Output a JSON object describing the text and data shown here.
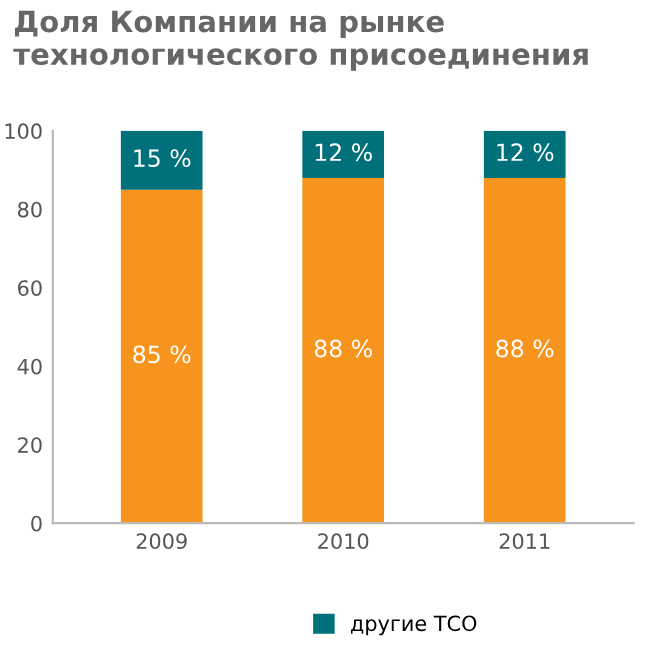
{
  "chart_data": {
    "type": "bar",
    "title": "Доля Компании на рынке\nтехнологического присоединения",
    "categories": [
      "2009",
      "2010",
      "2011"
    ],
    "stacked": true,
    "series": [
      {
        "color": "#f7941d",
        "values": [
          85,
          88,
          88
        ],
        "value_labels": [
          "85 %",
          "88 %",
          "88 %"
        ]
      },
      {
        "name": "другие ТСО",
        "color": "#00707a",
        "values": [
          15,
          12,
          12
        ],
        "value_labels": [
          "15 %",
          "12 %",
          "12 %"
        ]
      }
    ],
    "ylim": [
      0,
      100
    ],
    "yticks": [
      0,
      20,
      40,
      60,
      80,
      100
    ],
    "grid": false,
    "legend": "bottom"
  }
}
